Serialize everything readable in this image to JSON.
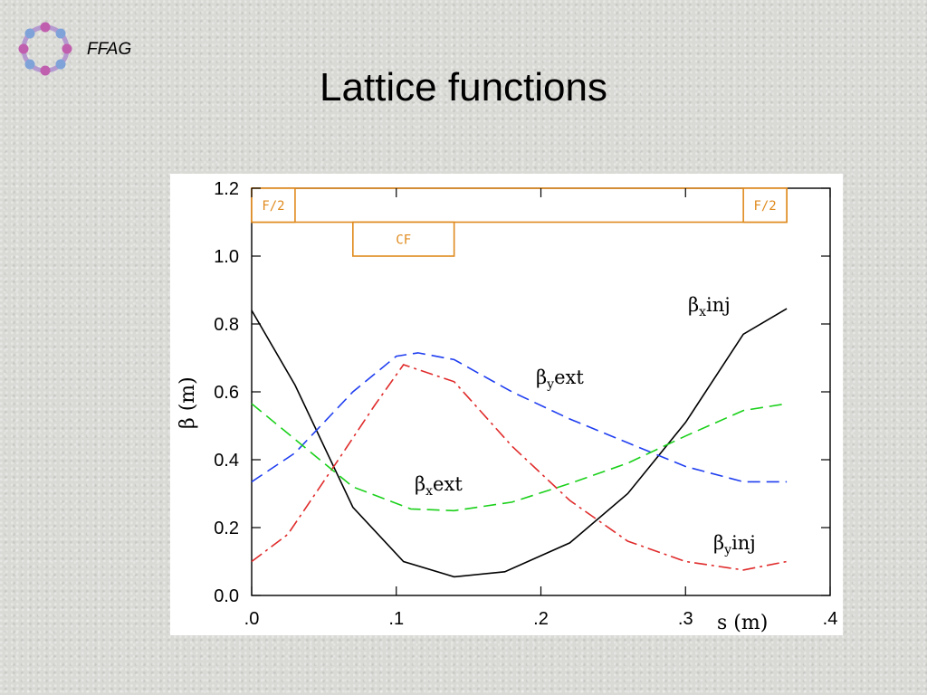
{
  "header": {
    "brand": "FFAG",
    "title": "Lattice functions"
  },
  "icons": {
    "logo": "ffag-ring-logo-icon"
  },
  "chart_data": {
    "type": "line",
    "title": "",
    "xlabel": "s  (m)",
    "ylabel": "β  (m)",
    "xlim": [
      0.0,
      0.4
    ],
    "ylim": [
      0.0,
      1.2
    ],
    "x_ticks": [
      ".0",
      ".1",
      ".2",
      ".3",
      ".4"
    ],
    "y_ticks": [
      "0.0",
      "0.2",
      "0.4",
      "0.6",
      "0.8",
      "1.0",
      "1.2"
    ],
    "grid": false,
    "series": [
      {
        "name": "βx inj",
        "color": "#000000",
        "style": "solid",
        "label": {
          "main": "β",
          "sub": "x",
          "rest": "inj"
        },
        "x": [
          0.0,
          0.03,
          0.07,
          0.105,
          0.14,
          0.175,
          0.22,
          0.26,
          0.3,
          0.34,
          0.37
        ],
        "y": [
          0.84,
          0.62,
          0.26,
          0.1,
          0.055,
          0.07,
          0.155,
          0.3,
          0.51,
          0.77,
          0.845
        ]
      },
      {
        "name": "βy ext",
        "color": "#1f3ef0",
        "style": "dashed",
        "label": {
          "main": "β",
          "sub": "y",
          "rest": "ext"
        },
        "x": [
          0.0,
          0.03,
          0.07,
          0.1,
          0.115,
          0.14,
          0.18,
          0.22,
          0.26,
          0.3,
          0.34,
          0.37
        ],
        "y": [
          0.335,
          0.42,
          0.6,
          0.705,
          0.715,
          0.695,
          0.6,
          0.52,
          0.45,
          0.38,
          0.335,
          0.335
        ]
      },
      {
        "name": "βy inj",
        "color": "#e02a2a",
        "style": "dashdot",
        "label": {
          "main": "β",
          "sub": "y",
          "rest": "inj"
        },
        "x": [
          0.0,
          0.025,
          0.06,
          0.085,
          0.105,
          0.14,
          0.18,
          0.22,
          0.26,
          0.3,
          0.34,
          0.37
        ],
        "y": [
          0.1,
          0.18,
          0.4,
          0.56,
          0.68,
          0.63,
          0.44,
          0.28,
          0.16,
          0.1,
          0.075,
          0.1
        ]
      },
      {
        "name": "βx ext",
        "color": "#1ad01a",
        "style": "dashed",
        "label": {
          "main": "β",
          "sub": "x",
          "rest": "ext"
        },
        "x": [
          0.0,
          0.03,
          0.07,
          0.11,
          0.14,
          0.18,
          0.22,
          0.26,
          0.3,
          0.34,
          0.37
        ],
        "y": [
          0.565,
          0.46,
          0.32,
          0.255,
          0.25,
          0.275,
          0.33,
          0.39,
          0.47,
          0.545,
          0.565
        ]
      }
    ],
    "elements": [
      {
        "label": "F/2",
        "s_start": 0.0,
        "s_end": 0.03,
        "row": "top"
      },
      {
        "label": "F/2",
        "s_start": 0.34,
        "s_end": 0.37,
        "row": "top"
      },
      {
        "label": "CF",
        "s_start": 0.07,
        "s_end": 0.14,
        "row": "bottom"
      }
    ],
    "element_color": "#e08a1e"
  }
}
